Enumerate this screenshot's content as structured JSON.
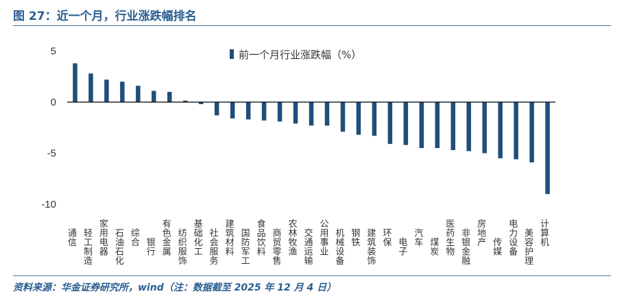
{
  "header": {
    "title": "图 27：近一个月，行业涨跌幅排名"
  },
  "footer": {
    "source": "资料来源：华金证券研究所，wind（注：数据截至 2025 年 12 月 4 日）"
  },
  "colors": {
    "bar": "#1f4e79",
    "title": "#2b5e91",
    "axis": "#000000",
    "text": "#333333"
  },
  "chart_data": {
    "type": "bar",
    "title": "",
    "legend": {
      "label": "前一个月行业涨跌幅（%）",
      "position": "top-center"
    },
    "xlabel": "",
    "ylabel": "",
    "ylim": [
      -10,
      5
    ],
    "yticks": [
      5,
      0,
      -5,
      -10
    ],
    "grid": false,
    "categories": [
      "通信",
      "轻工制造",
      "家用电器",
      "石油石化",
      "综合",
      "银行",
      "有色金属",
      "纺织服饰",
      "基础化工",
      "社会服务",
      "建筑材料",
      "国防军工",
      "食品饮料",
      "商贸零售",
      "农林牧渔",
      "交通运输",
      "公用事业",
      "机械设备",
      "钢铁",
      "建筑装饰",
      "环保",
      "电子",
      "汽车",
      "煤炭",
      "医药生物",
      "非银金融",
      "房地产",
      "传媒",
      "电力设备",
      "美容护理",
      "计算机"
    ],
    "values": [
      3.8,
      2.8,
      2.2,
      2.0,
      1.6,
      1.1,
      1.0,
      0.15,
      -0.2,
      -1.3,
      -1.6,
      -1.7,
      -1.8,
      -1.9,
      -2.1,
      -2.3,
      -2.3,
      -2.9,
      -3.2,
      -3.3,
      -4.1,
      -4.2,
      -4.5,
      -4.5,
      -4.7,
      -4.8,
      -5.0,
      -5.5,
      -5.6,
      -5.9,
      -9.0
    ]
  }
}
